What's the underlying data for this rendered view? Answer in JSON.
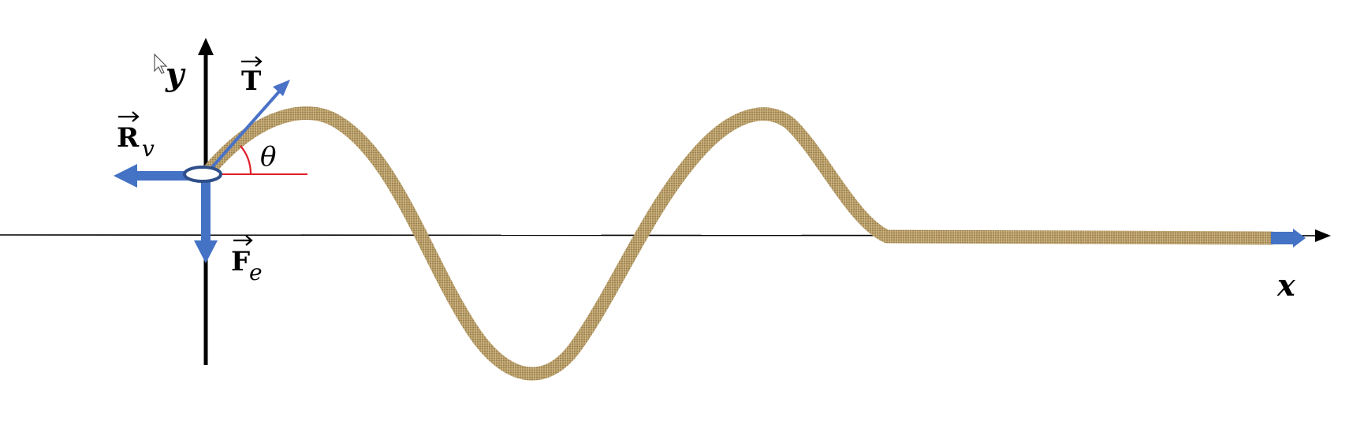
{
  "diagram": {
    "labels": {
      "y_axis": "y",
      "x_axis": "x",
      "tension": "T",
      "reaction": "R",
      "reaction_sub": "v",
      "weight": "F",
      "weight_sub": "e",
      "angle": "θ"
    },
    "colors": {
      "axis": "#000000",
      "force_arrow": "#4472c4",
      "tension_arrow": "#4a72c6",
      "angle_mark": "#e0202a",
      "rope": "#b89c66",
      "rope_dark": "#8c7448"
    },
    "icons": [
      "cursor-pointer-icon"
    ]
  }
}
